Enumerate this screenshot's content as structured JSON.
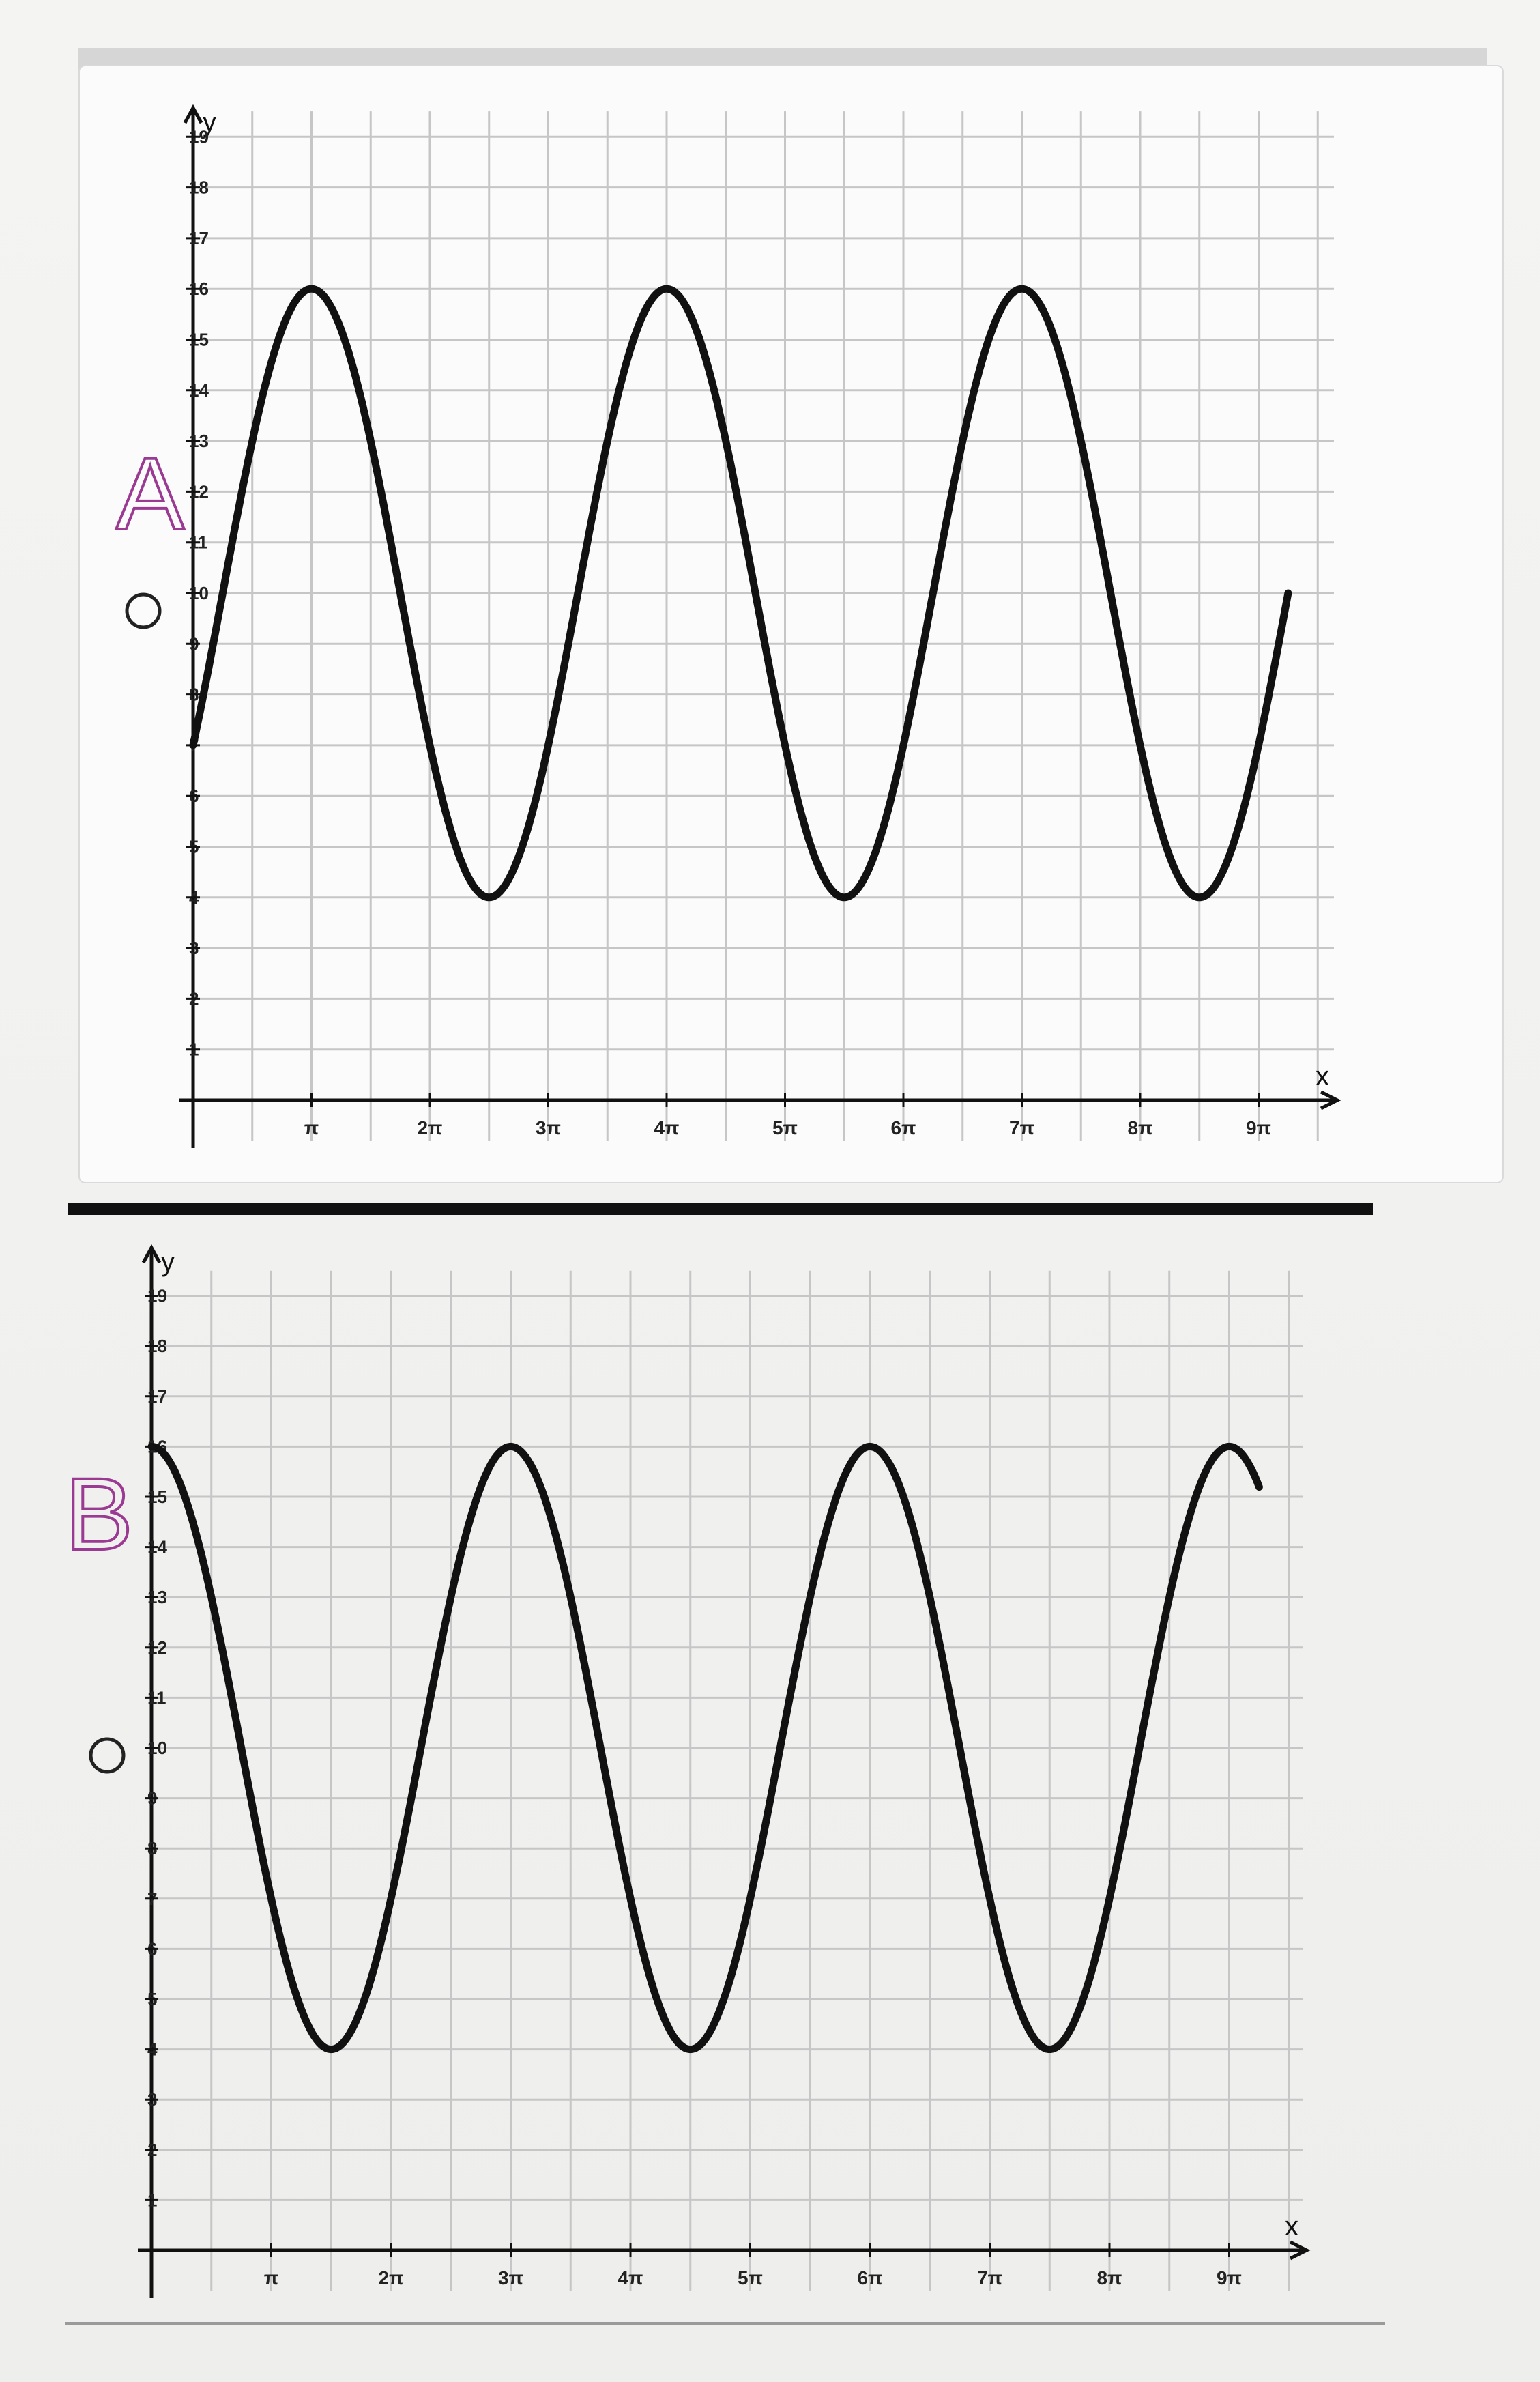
{
  "chart_data": [
    {
      "type": "line",
      "option_label": "A",
      "xlabel": "x",
      "ylabel": "y",
      "x_tick_labels": [
        "π",
        "2π",
        "3π",
        "4π",
        "5π",
        "6π",
        "7π",
        "8π",
        "9π"
      ],
      "y_tick_labels": [
        "1",
        "2",
        "3",
        "4",
        "5",
        "6",
        "7",
        "8",
        "9",
        "10",
        "11",
        "12",
        "13",
        "14",
        "15",
        "16",
        "17",
        "18",
        "19"
      ],
      "xlim_pi": [
        0,
        9.5
      ],
      "ylim": [
        0,
        19
      ],
      "grid": true,
      "series": [
        {
          "function": "10 + 6*sin(2*(x - 0.25*pi)/3)",
          "x_range_pi": [
            0,
            9.25
          ],
          "max": 16,
          "min": 4,
          "peaks_x_pi": [
            1,
            4,
            7
          ],
          "troughs_x_pi": [
            2.5,
            5.5,
            8.5
          ]
        }
      ],
      "color": "#111111"
    },
    {
      "type": "line",
      "option_label": "B",
      "xlabel": "x",
      "ylabel": "y",
      "x_tick_labels": [
        "π",
        "2π",
        "3π",
        "4π",
        "5π",
        "6π",
        "7π",
        "8π",
        "9π"
      ],
      "y_tick_labels": [
        "1",
        "2",
        "3",
        "4",
        "5",
        "6",
        "7",
        "8",
        "9",
        "10",
        "11",
        "12",
        "13",
        "14",
        "15",
        "16",
        "17",
        "18",
        "19"
      ],
      "xlim_pi": [
        0,
        9.5
      ],
      "ylim": [
        0,
        19
      ],
      "grid": true,
      "series": [
        {
          "function": "10 + 6*cos(2*x/3)",
          "x_range_pi": [
            0,
            9.25
          ],
          "max": 16,
          "min": 4,
          "peaks_x_pi": [
            0,
            3,
            6,
            9
          ],
          "troughs_x_pi": [
            1.5,
            4.5,
            7.5
          ]
        }
      ],
      "color": "#111111"
    }
  ],
  "choices": {
    "a_label": "A",
    "b_label": "B"
  }
}
